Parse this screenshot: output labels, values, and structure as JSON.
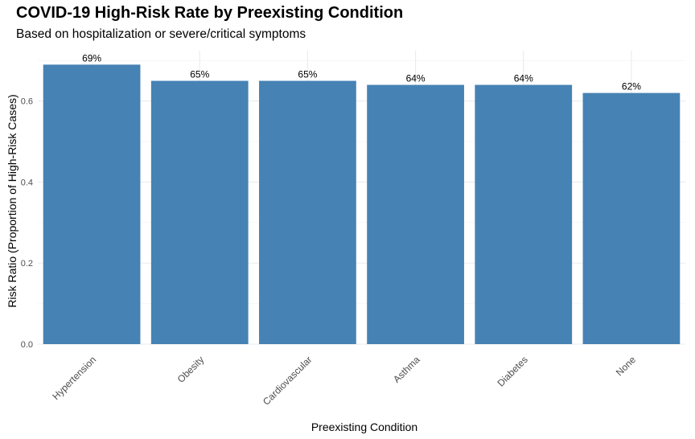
{
  "chart_data": {
    "type": "bar",
    "title": "COVID-19 High-Risk Rate by Preexisting Condition",
    "subtitle": "Based on hospitalization or severe/critical symptoms",
    "xlabel": "Preexisting Condition",
    "ylabel": "Risk Ratio (Proportion of High-Risk Cases)",
    "categories": [
      "Hypertension",
      "Obesity",
      "Cardiovascular",
      "Asthma",
      "Diabetes",
      "None"
    ],
    "values": [
      0.69,
      0.65,
      0.65,
      0.64,
      0.64,
      0.62
    ],
    "data_labels": [
      "69%",
      "65%",
      "65%",
      "64%",
      "64%",
      "62%"
    ],
    "yticks": [
      0.0,
      0.2,
      0.4,
      0.6
    ],
    "ytick_labels": [
      "0.0",
      "0.2",
      "0.4",
      "0.6"
    ],
    "ylim": [
      0,
      0.7245
    ],
    "grid": true,
    "bar_color": "#4682B4"
  }
}
